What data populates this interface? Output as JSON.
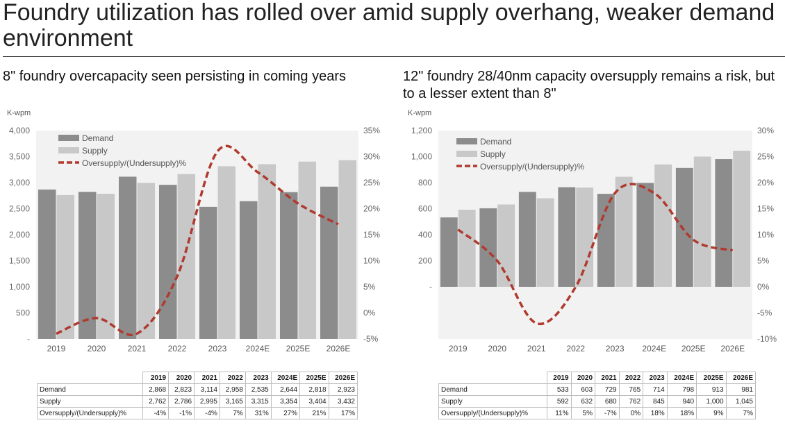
{
  "page": {
    "title": "Foundry utilization has rolled over amid supply overhang, weaker demand environment"
  },
  "colors": {
    "demand": "#8c8c8c",
    "supply": "#c8c8c8",
    "oversupply": "#b03a2e",
    "plot_bg": "#f2f2f2"
  },
  "chart_data": [
    {
      "type": "bar",
      "title": "8\" foundry overcapacity seen persisting in coming years",
      "ylabel": "K-wpm",
      "categories": [
        "2019",
        "2020",
        "2021",
        "2022",
        "2023",
        "2024E",
        "2025E",
        "2026E"
      ],
      "series": [
        {
          "name": "Demand",
          "type": "bar",
          "values": [
            2868,
            2823,
            3114,
            2958,
            2535,
            2644,
            2818,
            2923
          ]
        },
        {
          "name": "Supply",
          "type": "bar",
          "values": [
            2762,
            2786,
            2995,
            3165,
            3315,
            3354,
            3404,
            3432
          ]
        },
        {
          "name": "Oversupply/(Undersupply)%",
          "type": "line",
          "style": "dashed",
          "axis": "right",
          "values": [
            -4,
            -1,
            -4,
            7,
            31,
            27,
            21,
            17
          ]
        }
      ],
      "ylim": [
        0,
        4000
      ],
      "y_ticks": [
        "-",
        "500",
        "1,000",
        "1,500",
        "2,000",
        "2,500",
        "3,000",
        "3,500",
        "4,000"
      ],
      "y2lim": [
        -5,
        35
      ],
      "y2_ticks": [
        "-5%",
        "0%",
        "5%",
        "10%",
        "15%",
        "20%",
        "25%",
        "30%",
        "35%"
      ],
      "legend": "top-left",
      "grid": false,
      "table": {
        "headers": [
          "2019",
          "2020",
          "2021",
          "2022",
          "2023",
          "2024E",
          "2025E",
          "2026E"
        ],
        "rows": [
          {
            "label": "Demand",
            "cells": [
              "2,868",
              "2,823",
              "3,114",
              "2,958",
              "2,535",
              "2,644",
              "2,818",
              "2,923"
            ]
          },
          {
            "label": "Supply",
            "cells": [
              "2,762",
              "2,786",
              "2,995",
              "3,165",
              "3,315",
              "3,354",
              "3,404",
              "3,432"
            ]
          },
          {
            "label": "Oversupply/(Undersupply)%",
            "cells": [
              "-4%",
              "-1%",
              "-4%",
              "7%",
              "31%",
              "27%",
              "21%",
              "17%"
            ]
          }
        ]
      }
    },
    {
      "type": "bar",
      "title": "12\" foundry 28/40nm capacity oversupply remains a risk, but to a lesser extent than 8\"",
      "ylabel": "K-wpm",
      "categories": [
        "2019",
        "2020",
        "2021",
        "2022",
        "2023",
        "2024E",
        "2025E",
        "2026E"
      ],
      "series": [
        {
          "name": "Demand",
          "type": "bar",
          "values": [
            533,
            603,
            729,
            765,
            714,
            798,
            913,
            981
          ]
        },
        {
          "name": "Supply",
          "type": "bar",
          "values": [
            592,
            632,
            680,
            762,
            845,
            940,
            1000,
            1045
          ]
        },
        {
          "name": "Oversupply/(Undersupply)%",
          "type": "line",
          "style": "dashed",
          "axis": "right",
          "values": [
            11,
            5,
            -7,
            0,
            18,
            18,
            9,
            7
          ]
        }
      ],
      "ylim": [
        -400,
        1200
      ],
      "y_ticks": [
        "-",
        "200",
        "400",
        "600",
        "800",
        "1,000",
        "1,200"
      ],
      "y_tick_values": [
        0,
        200,
        400,
        600,
        800,
        1000,
        1200
      ],
      "y2lim": [
        -10,
        30
      ],
      "y2_ticks": [
        "-10%",
        "-5%",
        "0%",
        "5%",
        "10%",
        "15%",
        "20%",
        "25%",
        "30%"
      ],
      "legend": "top-left",
      "grid": false,
      "table": {
        "headers": [
          "2019",
          "2020",
          "2021",
          "2022",
          "2023",
          "2024E",
          "2025E",
          "2026E"
        ],
        "rows": [
          {
            "label": "Demand",
            "cells": [
              "533",
              "603",
              "729",
              "765",
              "714",
              "798",
              "913",
              "981"
            ]
          },
          {
            "label": "Supply",
            "cells": [
              "592",
              "632",
              "680",
              "762",
              "845",
              "940",
              "1,000",
              "1,045"
            ]
          },
          {
            "label": "Oversupply/(Undersupply)%",
            "cells": [
              "11%",
              "5%",
              "-7%",
              "0%",
              "18%",
              "18%",
              "9%",
              "7%"
            ]
          }
        ]
      }
    }
  ]
}
